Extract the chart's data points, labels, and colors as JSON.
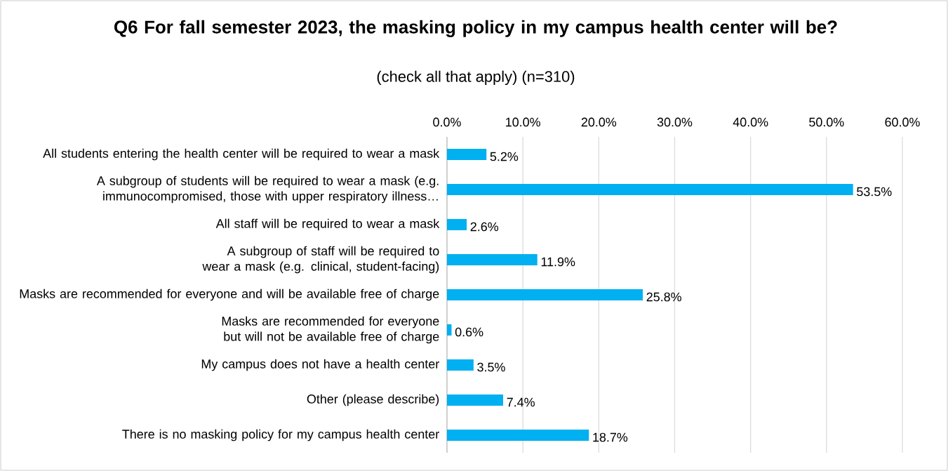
{
  "chart_data": {
    "type": "bar",
    "orientation": "horizontal",
    "title": "Q6 For fall semester 2023, the masking policy in my campus health center will be?",
    "subtitle": "(check all that apply) (n=310)",
    "categories": [
      "All students entering the health center will be required to wear a mask",
      "A subgroup of students will be required to wear a mask (e.g. immunocompromised, those with upper respiratory illness…",
      "All staff will be required to wear a mask",
      "A subgroup of staff will be required to wear a mask (e.g. clinical, student-facing)",
      "Masks are recommended for everyone and will be available free of charge",
      "Masks are recommended for everyone but will not be available free of charge",
      "My campus does not have a health center",
      "Other (please describe)",
      "There is no masking policy for my campus health center"
    ],
    "values": [
      5.2,
      53.5,
      2.6,
      11.9,
      25.8,
      0.6,
      3.5,
      7.4,
      18.7
    ],
    "value_labels": [
      "5.2%",
      "53.5%",
      "2.6%",
      "11.9%",
      "25.8%",
      "0.6%",
      "3.5%",
      "7.4%",
      "18.7%"
    ],
    "color": "#00b0f0",
    "xlim": [
      0,
      60
    ],
    "xticks": [
      {
        "value": 0,
        "label": "0.0%"
      },
      {
        "value": 10,
        "label": "10.0%"
      },
      {
        "value": 20,
        "label": "20.0%"
      },
      {
        "value": 30,
        "label": "30.0%"
      },
      {
        "value": 40,
        "label": "40.0%"
      },
      {
        "value": 50,
        "label": "50.0%"
      },
      {
        "value": 60,
        "label": "60.0%"
      }
    ],
    "grid": "x"
  }
}
